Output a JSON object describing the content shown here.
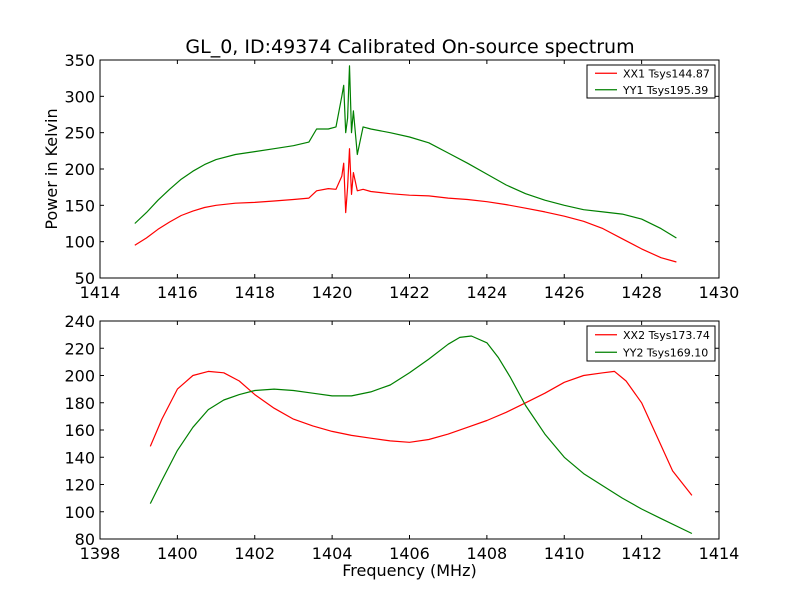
{
  "figure": {
    "title": "GL_0, ID:49374 Calibrated On-source spectrum"
  },
  "chart_data": [
    {
      "type": "line",
      "title": "GL_0, ID:49374 Calibrated On-source spectrum",
      "xlabel": "",
      "ylabel": "Power in Kelvin",
      "xlim": [
        1414,
        1430
      ],
      "ylim": [
        50,
        350
      ],
      "xticks": [
        1414,
        1416,
        1418,
        1420,
        1422,
        1424,
        1426,
        1428,
        1430
      ],
      "yticks": [
        50,
        100,
        150,
        200,
        250,
        300,
        350
      ],
      "grid": false,
      "legend_position": "top-right",
      "series": [
        {
          "name": "XX1 Tsys144.87",
          "color": "#ff0000",
          "x": [
            1414.9,
            1415.2,
            1415.5,
            1415.8,
            1416.1,
            1416.4,
            1416.7,
            1417.0,
            1417.5,
            1418.0,
            1418.5,
            1419.0,
            1419.4,
            1419.6,
            1419.9,
            1420.1,
            1420.25,
            1420.3,
            1420.35,
            1420.4,
            1420.45,
            1420.5,
            1420.55,
            1420.65,
            1420.8,
            1421.0,
            1421.5,
            1422.0,
            1422.5,
            1423.0,
            1423.5,
            1424.0,
            1424.5,
            1425.0,
            1425.5,
            1426.0,
            1426.5,
            1427.0,
            1427.5,
            1428.0,
            1428.5,
            1428.9
          ],
          "y": [
            95,
            105,
            117,
            127,
            136,
            142,
            147,
            150,
            153,
            154,
            156,
            158,
            160,
            170,
            173,
            172,
            190,
            208,
            140,
            175,
            228,
            165,
            195,
            170,
            172,
            169,
            166,
            164,
            163,
            160,
            158,
            155,
            151,
            146,
            141,
            135,
            128,
            118,
            104,
            90,
            78,
            72
          ]
        },
        {
          "name": "YY1 Tsys195.39",
          "color": "#008000",
          "x": [
            1414.9,
            1415.2,
            1415.5,
            1415.8,
            1416.1,
            1416.4,
            1416.7,
            1417.0,
            1417.5,
            1418.0,
            1418.5,
            1419.0,
            1419.4,
            1419.6,
            1419.9,
            1420.1,
            1420.25,
            1420.3,
            1420.35,
            1420.4,
            1420.45,
            1420.5,
            1420.55,
            1420.65,
            1420.8,
            1421.0,
            1421.5,
            1422.0,
            1422.5,
            1423.0,
            1423.5,
            1424.0,
            1424.5,
            1425.0,
            1425.5,
            1426.0,
            1426.5,
            1427.0,
            1427.5,
            1428.0,
            1428.5,
            1428.9
          ],
          "y": [
            125,
            140,
            157,
            172,
            186,
            197,
            206,
            213,
            220,
            224,
            228,
            232,
            237,
            255,
            255,
            258,
            300,
            315,
            250,
            270,
            342,
            250,
            280,
            220,
            258,
            255,
            250,
            244,
            236,
            222,
            208,
            193,
            178,
            166,
            157,
            150,
            144,
            141,
            138,
            131,
            118,
            105
          ]
        }
      ]
    },
    {
      "type": "line",
      "title": "",
      "xlabel": "Frequency (MHz)",
      "ylabel": "",
      "xlim": [
        1398,
        1414
      ],
      "ylim": [
        80,
        240
      ],
      "xticks": [
        1398,
        1400,
        1402,
        1404,
        1406,
        1408,
        1410,
        1412,
        1414
      ],
      "yticks": [
        80,
        100,
        120,
        140,
        160,
        180,
        200,
        220,
        240
      ],
      "grid": false,
      "legend_position": "top-right",
      "series": [
        {
          "name": "XX2 Tsys173.74",
          "color": "#ff0000",
          "x": [
            1399.3,
            1399.6,
            1400.0,
            1400.4,
            1400.8,
            1401.2,
            1401.6,
            1402.0,
            1402.5,
            1403.0,
            1403.5,
            1404.0,
            1404.5,
            1405.0,
            1405.5,
            1406.0,
            1406.5,
            1407.0,
            1407.5,
            1408.0,
            1408.5,
            1409.0,
            1409.5,
            1410.0,
            1410.5,
            1411.0,
            1411.3,
            1411.6,
            1412.0,
            1412.4,
            1412.8,
            1413.3
          ],
          "y": [
            148,
            168,
            190,
            200,
            203,
            202,
            196,
            186,
            176,
            168,
            163,
            159,
            156,
            154,
            152,
            151,
            153,
            157,
            162,
            167,
            173,
            180,
            187,
            195,
            200,
            202,
            203,
            196,
            180,
            155,
            130,
            112
          ]
        },
        {
          "name": "YY2 Tsys169.10",
          "color": "#008000",
          "x": [
            1399.3,
            1399.6,
            1400.0,
            1400.4,
            1400.8,
            1401.2,
            1401.6,
            1402.0,
            1402.5,
            1403.0,
            1403.5,
            1404.0,
            1404.5,
            1405.0,
            1405.5,
            1406.0,
            1406.5,
            1407.0,
            1407.3,
            1407.6,
            1408.0,
            1408.3,
            1408.6,
            1409.0,
            1409.5,
            1410.0,
            1410.5,
            1411.0,
            1411.5,
            1412.0,
            1412.5,
            1413.3
          ],
          "y": [
            106,
            123,
            145,
            162,
            175,
            182,
            186,
            189,
            190,
            189,
            187,
            185,
            185,
            188,
            193,
            202,
            212,
            223,
            228,
            229,
            224,
            213,
            199,
            178,
            157,
            140,
            128,
            119,
            110,
            102,
            95,
            84
          ]
        }
      ]
    }
  ]
}
